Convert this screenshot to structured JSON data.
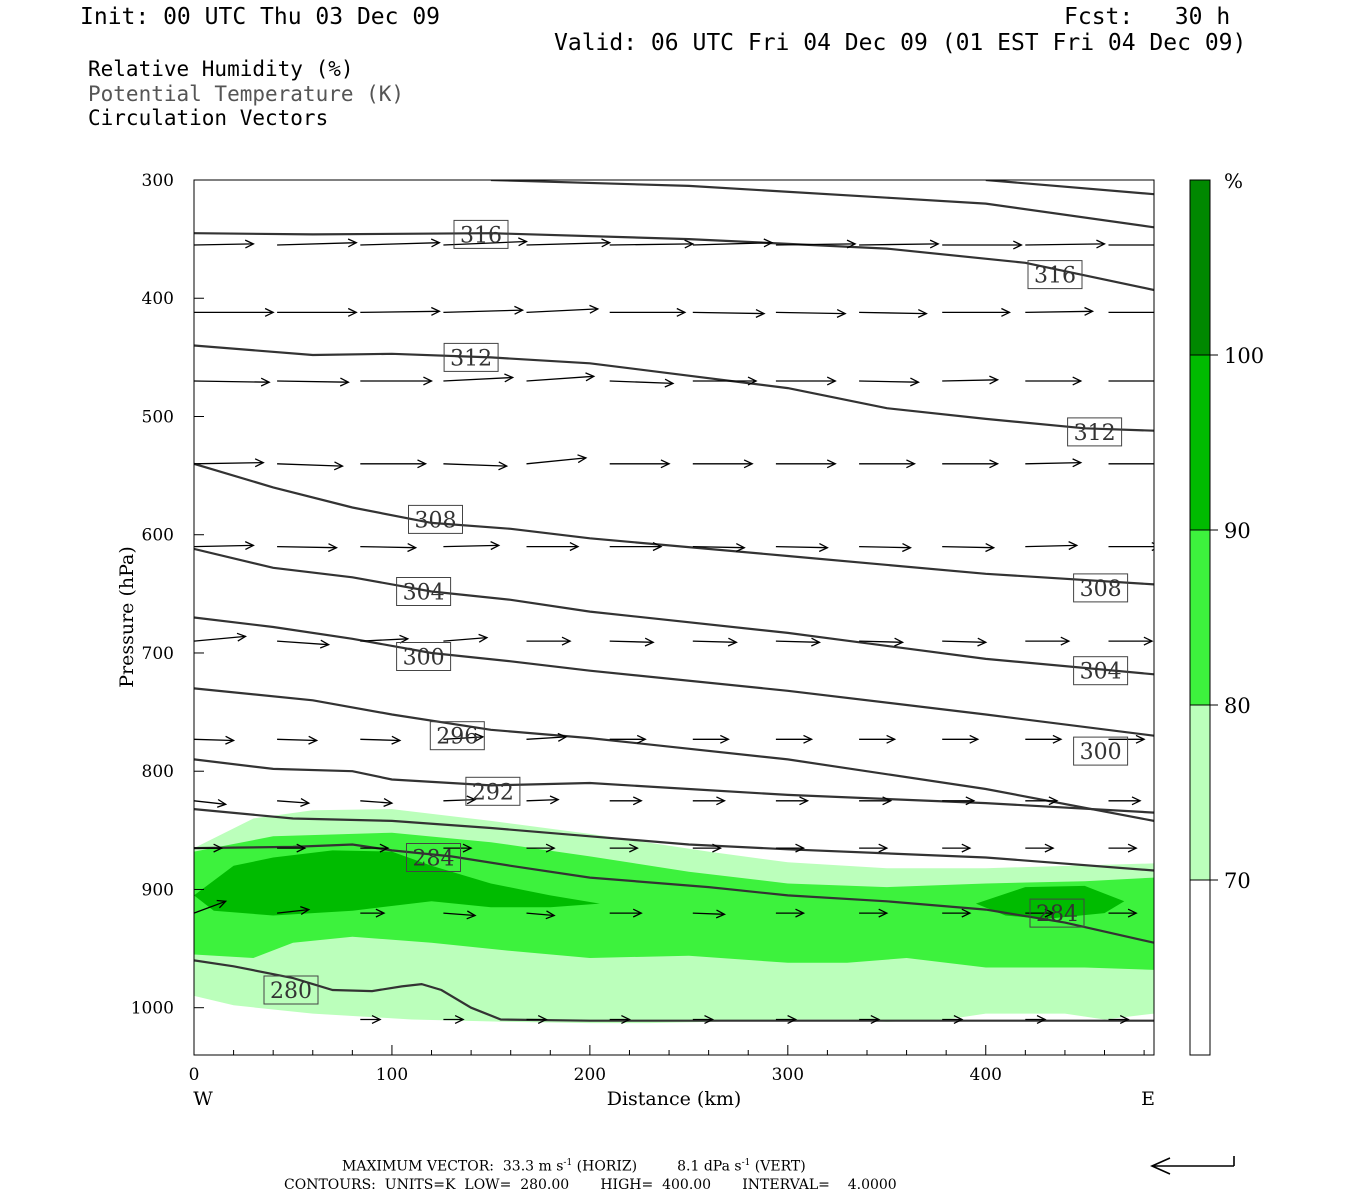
{
  "header": {
    "init": "Init: 00 UTC Thu 03 Dec 09",
    "fcst": "Fcst:   30 h",
    "valid": "Valid: 06 UTC Fri 04 Dec 09 (01 EST Fri 04 Dec 09)"
  },
  "legend_labels": [
    "Relative Humidity (%)",
    "Potential Temperature (K)",
    "Circulation Vectors"
  ],
  "chart_data": {
    "type": "cross-section",
    "xlabel": "Distance (km)",
    "ylabel": "Pressure (hPa)",
    "xlim": [
      0,
      485
    ],
    "ylim": [
      1040,
      300
    ],
    "x_ticks": [
      "0",
      "100",
      "200",
      "300",
      "400"
    ],
    "y_ticks": [
      "300",
      "400",
      "500",
      "600",
      "700",
      "800",
      "900",
      "1000"
    ],
    "x_end_left": "W",
    "x_end_right": "E",
    "colorbar": {
      "unit": "%",
      "levels": [
        "70",
        "80",
        "90",
        "100"
      ],
      "colors": [
        "#ffffff",
        "#bbffbb",
        "#3df23d",
        "#00bb00",
        "#008800"
      ]
    },
    "theta_contours": [
      {
        "level": 280,
        "x": [
          0,
          20,
          50,
          70,
          90,
          105,
          115,
          125,
          140,
          155,
          200,
          300,
          400,
          485
        ],
        "p": [
          960,
          965,
          975,
          985,
          986,
          982,
          980,
          985,
          1000,
          1010,
          1011,
          1011,
          1011,
          1011
        ]
      },
      {
        "level": 284,
        "x": [
          0,
          50,
          80,
          100,
          130,
          160,
          200,
          260,
          300,
          350,
          400,
          440,
          485
        ],
        "p": [
          865,
          864,
          862,
          867,
          872,
          880,
          890,
          898,
          905,
          910,
          917,
          928,
          945
        ]
      },
      {
        "level": 288,
        "x": [
          0,
          50,
          100,
          150,
          200,
          250,
          300,
          400,
          485
        ],
        "p": [
          832,
          840,
          842,
          848,
          855,
          862,
          866,
          873,
          884
        ]
      },
      {
        "level": 292,
        "x": [
          0,
          40,
          80,
          100,
          150,
          200,
          250,
          300,
          400,
          485
        ],
        "p": [
          790,
          798,
          800,
          807,
          812,
          810,
          815,
          820,
          827,
          835
        ]
      },
      {
        "level": 296,
        "x": [
          0,
          60,
          100,
          150,
          200,
          300,
          400,
          485
        ],
        "p": [
          730,
          740,
          752,
          765,
          772,
          790,
          815,
          842
        ]
      },
      {
        "level": 300,
        "x": [
          0,
          40,
          80,
          120,
          160,
          200,
          300,
          400,
          485
        ],
        "p": [
          670,
          678,
          688,
          700,
          707,
          715,
          732,
          752,
          770
        ]
      },
      {
        "level": 304,
        "x": [
          0,
          40,
          80,
          120,
          160,
          200,
          300,
          400,
          485
        ],
        "p": [
          612,
          628,
          636,
          648,
          655,
          665,
          683,
          705,
          718
        ]
      },
      {
        "level": 308,
        "x": [
          0,
          40,
          80,
          120,
          160,
          200,
          300,
          400,
          485
        ],
        "p": [
          540,
          560,
          577,
          590,
          595,
          603,
          618,
          633,
          642
        ]
      },
      {
        "level": 312,
        "x": [
          0,
          60,
          100,
          150,
          200,
          300,
          350,
          400,
          450,
          485
        ],
        "p": [
          440,
          448,
          447,
          450,
          455,
          476,
          493,
          502,
          510,
          512
        ]
      },
      {
        "level": 316,
        "x": [
          0,
          60,
          150,
          250,
          350,
          420,
          485
        ],
        "p": [
          345,
          346,
          345,
          350,
          358,
          370,
          393
        ]
      },
      {
        "level": 320,
        "x": [
          150,
          250,
          350,
          400,
          485
        ],
        "p": [
          300,
          305,
          315,
          320,
          340
        ]
      },
      {
        "level": 324,
        "x": [
          400,
          485
        ],
        "p": [
          300,
          312
        ]
      }
    ],
    "theta_labels": [
      {
        "text": "316",
        "x": 145,
        "p": 346
      },
      {
        "text": "316",
        "x": 435,
        "p": 380
      },
      {
        "text": "312",
        "x": 140,
        "p": 450
      },
      {
        "text": "312",
        "x": 455,
        "p": 513
      },
      {
        "text": "308",
        "x": 122,
        "p": 587
      },
      {
        "text": "308",
        "x": 458,
        "p": 645
      },
      {
        "text": "304",
        "x": 116,
        "p": 648
      },
      {
        "text": "304",
        "x": 458,
        "p": 715
      },
      {
        "text": "300",
        "x": 116,
        "p": 703
      },
      {
        "text": "300",
        "x": 458,
        "p": 783
      },
      {
        "text": "296",
        "x": 133,
        "p": 770
      },
      {
        "text": "292",
        "x": 151,
        "p": 817
      },
      {
        "text": "284",
        "x": 121,
        "p": 873
      },
      {
        "text": "284",
        "x": 436,
        "p": 920
      },
      {
        "text": "280",
        "x": 49,
        "p": 985
      }
    ],
    "rh_regions": [
      {
        "level": 70,
        "x": [
          0,
          30,
          60,
          100,
          150,
          200,
          260,
          300,
          350,
          400,
          485,
          485,
          460,
          440,
          400,
          380,
          350,
          330,
          300,
          260,
          230,
          200,
          160,
          110,
          60,
          20,
          0
        ],
        "p": [
          865,
          840,
          833,
          832,
          842,
          853,
          868,
          877,
          882,
          882,
          878,
          1005,
          1010,
          1005,
          1005,
          1010,
          1012,
          1010,
          1010,
          1012,
          1013,
          1013,
          1012,
          1010,
          1005,
          998,
          990
        ]
      },
      {
        "level": 80,
        "x": [
          0,
          40,
          100,
          150,
          200,
          250,
          300,
          350,
          400,
          450,
          485,
          485,
          450,
          400,
          360,
          330,
          300,
          250,
          200,
          160,
          120,
          80,
          50,
          30,
          0
        ],
        "p": [
          868,
          855,
          852,
          860,
          872,
          885,
          895,
          898,
          895,
          893,
          890,
          968,
          966,
          966,
          958,
          962,
          962,
          956,
          958,
          952,
          945,
          940,
          945,
          958,
          955
        ]
      },
      {
        "level": 90,
        "x": [
          0,
          20,
          40,
          70,
          100,
          120,
          150,
          180,
          205,
          180,
          150,
          120,
          80,
          40,
          10,
          0
        ],
        "p": [
          905,
          880,
          873,
          867,
          868,
          880,
          895,
          905,
          912,
          915,
          915,
          910,
          918,
          922,
          918,
          905
        ]
      },
      {
        "level": 90,
        "x": [
          395,
          420,
          450,
          470,
          460,
          430,
          410,
          395
        ],
        "p": [
          912,
          898,
          897,
          910,
          920,
          925,
          922,
          912
        ]
      }
    ],
    "vector_rows": [
      {
        "p": 355,
        "x_start": [
          0,
          42,
          84,
          126,
          168,
          210,
          252,
          294,
          336,
          378,
          420,
          462
        ],
        "dx": [
          30,
          40,
          40,
          42,
          42,
          42,
          40,
          40,
          40,
          40,
          40,
          40
        ],
        "dp": [
          -1,
          -2,
          -2,
          -3,
          -2,
          -1,
          -2,
          -1,
          -1,
          0,
          -1,
          0
        ]
      },
      {
        "p": 412,
        "x_start": [
          0,
          42,
          84,
          126,
          168,
          210,
          252,
          294,
          336,
          378,
          420,
          462
        ],
        "dx": [
          40,
          40,
          40,
          40,
          36,
          38,
          36,
          35,
          34,
          34,
          34,
          34
        ],
        "dp": [
          0,
          0,
          -1,
          -2,
          -3,
          0,
          1,
          1,
          1,
          0,
          -1,
          0
        ]
      },
      {
        "p": 470,
        "x_start": [
          0,
          42,
          84,
          126,
          168,
          210,
          252,
          294,
          336,
          378,
          420,
          462
        ],
        "dx": [
          38,
          36,
          36,
          35,
          34,
          32,
          32,
          30,
          30,
          28,
          28,
          28
        ],
        "dp": [
          1,
          1,
          0,
          -3,
          -4,
          2,
          0,
          0,
          1,
          -1,
          0,
          0
        ]
      },
      {
        "p": 540,
        "x_start": [
          0,
          42,
          84,
          126,
          168,
          210,
          252,
          294,
          336,
          378,
          420,
          462
        ],
        "dx": [
          35,
          33,
          33,
          32,
          30,
          30,
          30,
          30,
          28,
          28,
          28,
          28
        ],
        "dp": [
          -1,
          2,
          0,
          2,
          -5,
          0,
          0,
          0,
          0,
          0,
          -1,
          0
        ]
      },
      {
        "p": 610,
        "x_start": [
          0,
          42,
          84,
          126,
          168,
          210,
          252,
          294,
          336,
          378,
          420,
          462
        ],
        "dx": [
          30,
          30,
          28,
          28,
          26,
          26,
          26,
          26,
          26,
          26,
          26,
          26
        ],
        "dp": [
          -1,
          1,
          1,
          -1,
          0,
          0,
          1,
          1,
          1,
          1,
          -1,
          0
        ]
      },
      {
        "p": 690,
        "x_start": [
          0,
          42,
          84,
          126,
          168,
          210,
          252,
          294,
          336,
          378,
          420,
          462
        ],
        "dx": [
          26,
          26,
          24,
          22,
          22,
          22,
          22,
          22,
          22,
          22,
          22,
          22
        ],
        "dp": [
          -4,
          3,
          -2,
          -3,
          0,
          1,
          1,
          1,
          1,
          1,
          0,
          0
        ]
      },
      {
        "p": 773,
        "x_start": [
          0,
          42,
          84,
          126,
          168,
          210,
          252,
          294,
          336,
          378,
          420,
          462
        ],
        "dx": [
          20,
          20,
          20,
          20,
          20,
          18,
          18,
          18,
          18,
          18,
          18,
          18
        ],
        "dp": [
          1,
          1,
          1,
          -2,
          -2,
          0,
          0,
          0,
          0,
          0,
          0,
          0
        ]
      },
      {
        "p": 825,
        "x_start": [
          0,
          42,
          84,
          126,
          168,
          210,
          252,
          294,
          336,
          378,
          420,
          462
        ],
        "dx": [
          16,
          16,
          16,
          16,
          16,
          16,
          16,
          16,
          16,
          16,
          16,
          16
        ],
        "dp": [
          3,
          2,
          2,
          -1,
          -1,
          0,
          0,
          0,
          0,
          0,
          0,
          0
        ]
      },
      {
        "p": 865,
        "x_start": [
          0,
          42,
          84,
          126,
          168,
          210,
          252,
          294,
          336,
          378,
          420,
          462
        ],
        "dx": [
          14,
          14,
          14,
          14,
          14,
          14,
          14,
          14,
          14,
          14,
          14,
          14
        ],
        "dp": [
          0,
          0,
          0,
          0,
          0,
          0,
          0,
          0,
          0,
          0,
          0,
          0
        ]
      },
      {
        "p": 920,
        "x_start": [
          0,
          42,
          84,
          126,
          168,
          210,
          252,
          294,
          336,
          378,
          420,
          462
        ],
        "dx": [
          16,
          16,
          12,
          16,
          14,
          16,
          16,
          14,
          14,
          14,
          14,
          14
        ],
        "dp": [
          -10,
          -3,
          0,
          2,
          2,
          0,
          1,
          0,
          0,
          0,
          0,
          0
        ]
      },
      {
        "p": 1010,
        "x_start": [
          84,
          126,
          168,
          210,
          252,
          294,
          336,
          378,
          420,
          462
        ],
        "dx": [
          10,
          10,
          10,
          10,
          10,
          10,
          10,
          10,
          10,
          10
        ],
        "dp": [
          0,
          0,
          0,
          0,
          0,
          0,
          0,
          0,
          0,
          0
        ]
      }
    ]
  },
  "footer": {
    "max_vector": "MAXIMUM VECTOR:  33.3 m s",
    "max_vector_exp1": "-1",
    "max_vector_horiz": " (HORIZ)         8.1 dPa s",
    "max_vector_exp2": "-1",
    "max_vector_vert": " (VERT)",
    "contours": "CONTOURS:  UNITS=K  LOW=  280.00       HIGH=  400.00       INTERVAL=    4.0000"
  }
}
